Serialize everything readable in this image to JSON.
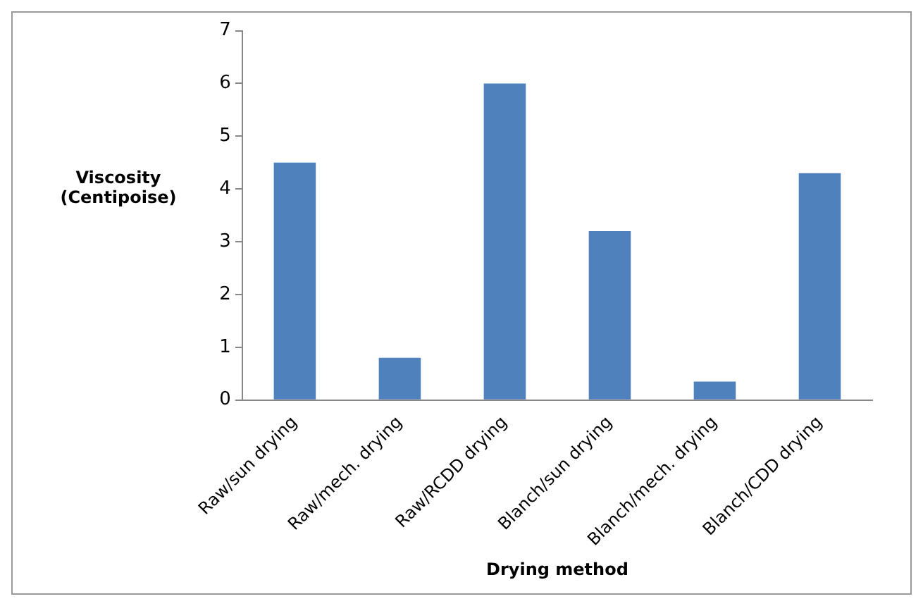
{
  "chart_data": {
    "type": "bar",
    "xlabel": "Drying method",
    "ylabel": "Viscosity (Centipoise)",
    "categories": [
      "Raw/sun drying",
      "Raw/mech. drying",
      "Raw/RCDD drying",
      "Blanch/sun drying",
      "Blanch/mech. drying",
      "Blanch/CDD drying"
    ],
    "series": [
      {
        "color": "#4f81bd",
        "values": [
          4.5,
          0.8,
          6.0,
          3.2,
          0.35,
          4.3
        ]
      }
    ],
    "ylim": [
      0,
      7
    ],
    "yticks": [
      0,
      1,
      2,
      3,
      4,
      5,
      6,
      7
    ],
    "grid": false,
    "legend": false
  }
}
